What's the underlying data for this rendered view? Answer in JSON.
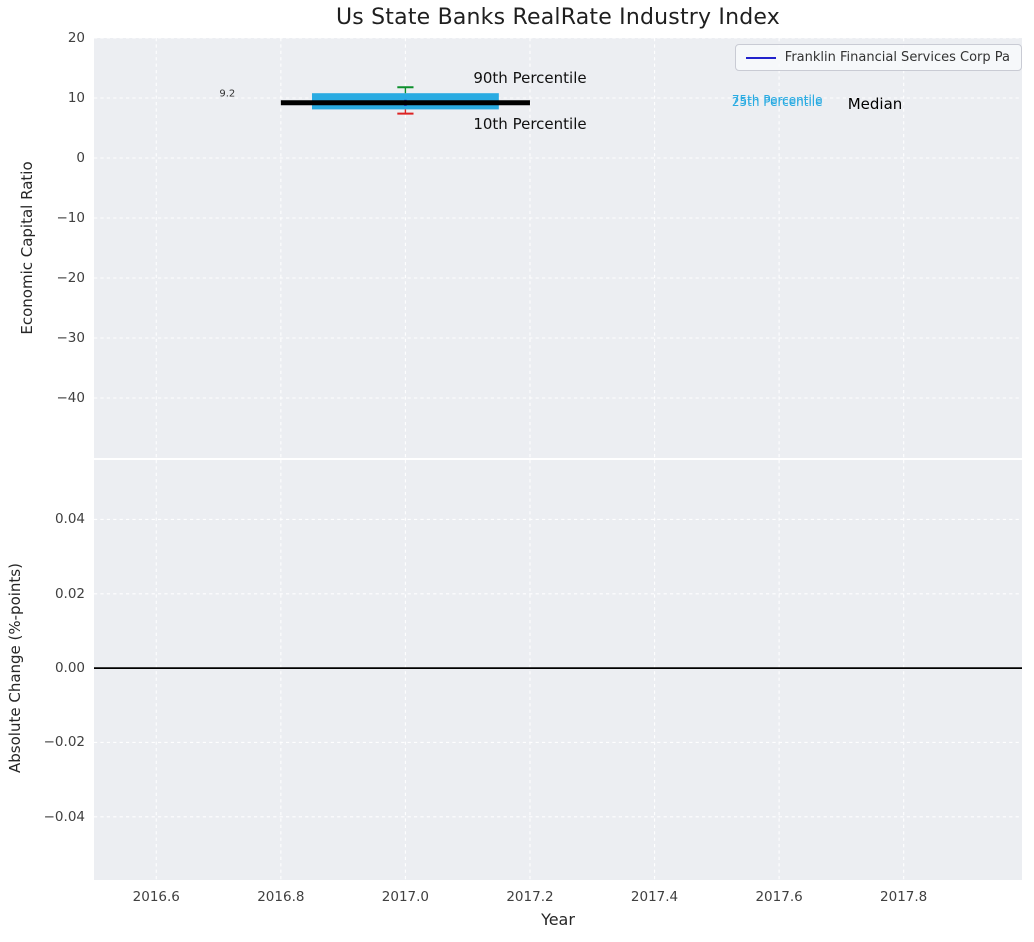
{
  "chart_data": {
    "type": "line",
    "title": "Us State Banks RealRate Industry Index",
    "xlabel": "Year",
    "xlim": [
      2016.5,
      2017.99
    ],
    "xticks": [
      2016.6,
      2016.8,
      2017.0,
      2017.2,
      2017.4,
      2017.6,
      2017.8
    ],
    "xtick_labels": [
      "2016.6",
      "2016.8",
      "2017.0",
      "2017.2",
      "2017.4",
      "2017.6",
      "2017.8"
    ],
    "grid": "white dashed on light gray panels",
    "panel_bg": "#eceef2",
    "top_panel": {
      "ylabel": "Economic Capital Ratio",
      "ylim": [
        -50,
        20
      ],
      "yticks": [
        20,
        10,
        0,
        -10,
        -20,
        -30,
        -40
      ],
      "ytick_labels": [
        "20",
        "10",
        "0",
        "−10",
        "−20",
        "−30",
        "−40"
      ],
      "series": [
        {
          "name": "Franklin Financial Services Corp Pa",
          "type": "point",
          "x": 2017.0,
          "y": 9.2,
          "color": "#2222cc"
        }
      ],
      "industry_stats": {
        "median": {
          "value": 9.2,
          "x_start": 2016.8,
          "x_end": 2017.2,
          "color": "#000000"
        },
        "iqr_band": {
          "p25": 8.1,
          "p75": 10.8,
          "x_start": 2016.85,
          "x_end": 2017.15,
          "color": "#29abe2"
        },
        "p90": {
          "value": 11.8,
          "x": 2017.0,
          "cap_halfwidth": 0.013,
          "color": "#0d8f2d"
        },
        "p10": {
          "value": 7.4,
          "x": 2017.0,
          "cap_halfwidth": 0.013,
          "color": "#dd2222"
        }
      },
      "annotations": [
        {
          "text": "9.2",
          "x": 2016.714,
          "y": 10.6,
          "color": "#333333",
          "size": 10
        },
        {
          "text": "90th Percentile",
          "x": 2017.2,
          "y": 13.4,
          "color": "#111111",
          "size": 15
        },
        {
          "text": "10th Percentile",
          "x": 2017.2,
          "y": 5.6,
          "color": "#111111",
          "size": 15
        },
        {
          "text": "75th Percentile",
          "x": 2017.597,
          "y": 9.6,
          "color": "#29abe2",
          "size": 12
        },
        {
          "text": "25th Percentile",
          "x": 2017.597,
          "y": 9.3,
          "color": "#29abe2",
          "size": 12
        },
        {
          "text": "Median",
          "x": 2017.754,
          "y": 9.0,
          "color": "#000000",
          "size": 15
        }
      ]
    },
    "bottom_panel": {
      "ylabel": "Absolute Change (%-points)",
      "ylim": [
        -0.057,
        0.056
      ],
      "yticks": [
        0.04,
        0.02,
        0.0,
        -0.02,
        -0.04
      ],
      "ytick_labels": [
        "0.04",
        "0.02",
        "0.00",
        "−0.02",
        "−0.04"
      ],
      "zero_line": {
        "value": 0.0,
        "color": "#000000"
      }
    },
    "legend": {
      "position": "upper right",
      "entries": [
        {
          "label": "Franklin Financial Services Corp Pa",
          "color": "#2222cc",
          "type": "line"
        }
      ]
    }
  }
}
